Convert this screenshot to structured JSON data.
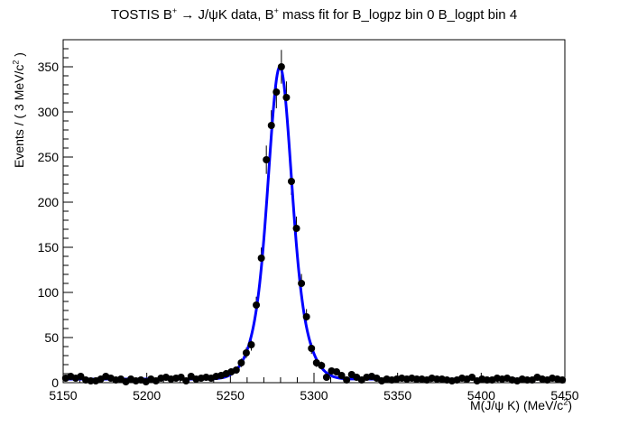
{
  "chart_data": {
    "type": "scatter",
    "title": {
      "pre": "TOSTIS B",
      "sup1": "+",
      "arrow": " → J/ψK data, B",
      "sup2": "+",
      "post": " mass fit for B_logpz bin 0 B_logpt bin 4"
    },
    "xlabel": {
      "pre": "M(J/ψ K) (MeV/c",
      "sup": "2",
      "post": ")"
    },
    "ylabel": {
      "pre": "Events / ( 3 MeV/c",
      "sup": "2",
      "post": " )"
    },
    "xlim": [
      5150,
      5450
    ],
    "ylim": [
      0,
      380
    ],
    "x_ticks": [
      5150,
      5200,
      5250,
      5300,
      5350,
      5400,
      5450
    ],
    "y_ticks": [
      0,
      50,
      100,
      150,
      200,
      250,
      300,
      350
    ],
    "grid": false,
    "legend": "none",
    "colors": {
      "data": "#000000",
      "fit": "#0000ff"
    },
    "series": [
      {
        "type": "points_with_errors",
        "x": [
          5151.5,
          5154.5,
          5157.5,
          5160.5,
          5163.5,
          5166.5,
          5169.5,
          5172.5,
          5175.5,
          5178.5,
          5181.5,
          5184.5,
          5187.5,
          5190.5,
          5193.5,
          5196.5,
          5199.5,
          5202.5,
          5205.5,
          5208.5,
          5211.5,
          5214.5,
          5217.5,
          5220.5,
          5223.5,
          5226.5,
          5229.5,
          5232.5,
          5235.5,
          5238.5,
          5241.5,
          5244.5,
          5247.5,
          5250.5,
          5253.5,
          5256.5,
          5259.5,
          5262.5,
          5265.5,
          5268.5,
          5271.5,
          5274.5,
          5277.5,
          5280.5,
          5283.5,
          5286.5,
          5289.5,
          5292.5,
          5295.5,
          5298.5,
          5301.5,
          5304.5,
          5307.5,
          5310.5,
          5313.5,
          5316.5,
          5319.5,
          5322.5,
          5325.5,
          5328.5,
          5331.5,
          5334.5,
          5337.5,
          5340.5,
          5343.5,
          5346.5,
          5349.5,
          5352.5,
          5355.5,
          5358.5,
          5361.5,
          5364.5,
          5367.5,
          5370.5,
          5373.5,
          5376.5,
          5379.5,
          5382.5,
          5385.5,
          5388.5,
          5391.5,
          5394.5,
          5397.5,
          5400.5,
          5403.5,
          5406.5,
          5409.5,
          5412.5,
          5415.5,
          5418.5,
          5421.5,
          5424.5,
          5427.5,
          5430.5,
          5433.5,
          5436.5,
          5439.5,
          5442.5,
          5445.5,
          5448.5
        ],
        "y": [
          5,
          7,
          5,
          7,
          3,
          2,
          2,
          4,
          7,
          5,
          3,
          4,
          1,
          4,
          2,
          3,
          1,
          4,
          2,
          5,
          6,
          4,
          5,
          6,
          2,
          7,
          4,
          5,
          6,
          5,
          7,
          8,
          10,
          12,
          14,
          22,
          33,
          42,
          86,
          138,
          247,
          285,
          322,
          350,
          316,
          223,
          171,
          110,
          73,
          38,
          22,
          19,
          6,
          13,
          12,
          8,
          3,
          9,
          6,
          3,
          6,
          7,
          5,
          2,
          4,
          3,
          4,
          5,
          4,
          5,
          4,
          4,
          3,
          5,
          4,
          4,
          3,
          2,
          3,
          5,
          4,
          6,
          2,
          4,
          3,
          3,
          5,
          4,
          5,
          3,
          2,
          4,
          3,
          3,
          6,
          4,
          3,
          5,
          4,
          3
        ]
      },
      {
        "type": "fit_curve",
        "name": "",
        "model": {
          "mean": 5279.6,
          "sigma1": 6.1,
          "sigma2": 11.5,
          "frac1": 0.62,
          "norm": 350,
          "background": 4
        }
      }
    ]
  }
}
